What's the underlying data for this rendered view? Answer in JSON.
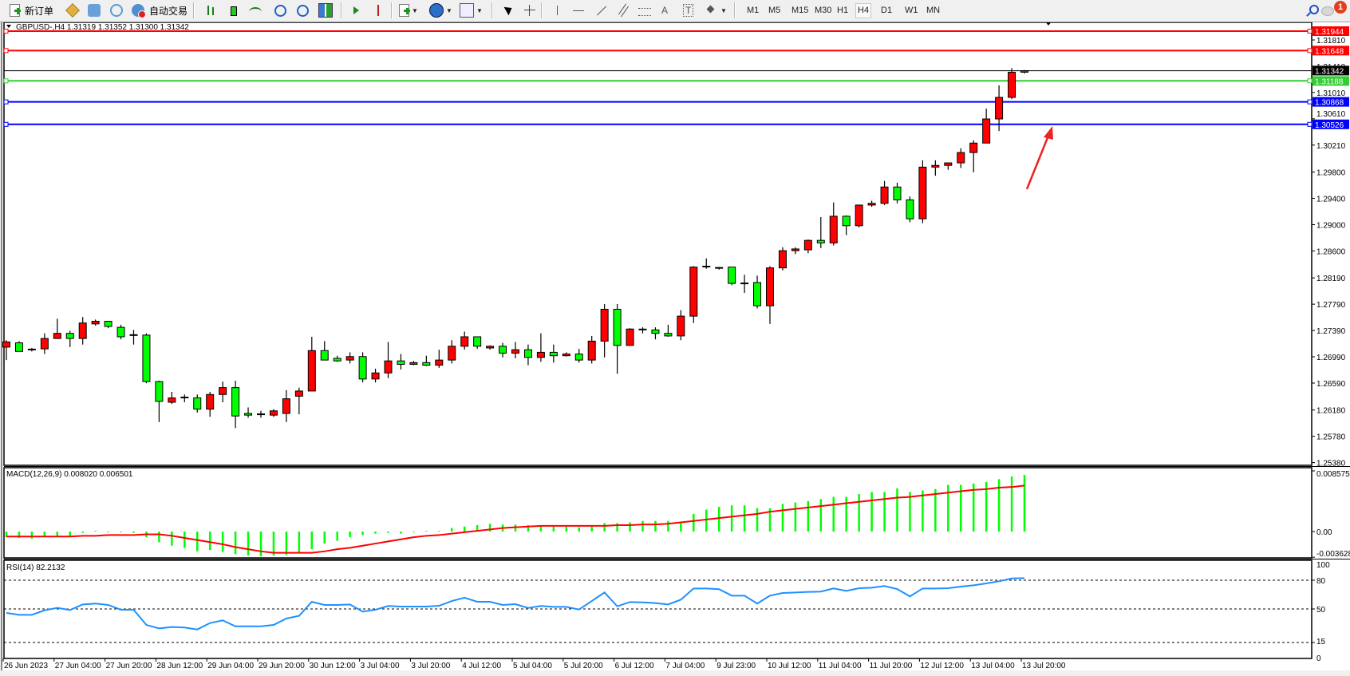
{
  "toolbar": {
    "new_order_label": "新订单",
    "auto_trading_label": "自动交易",
    "timeframes": [
      "M1",
      "M5",
      "M15",
      "M30",
      "H1",
      "H4",
      "D1",
      "W1",
      "MN"
    ],
    "active_timeframe": "H4",
    "notification_count": "1",
    "tool_text_label": "A",
    "tool_label_text": "T"
  },
  "chart": {
    "title": "GBPUSD-,H4  1.31319 1.31352 1.31300 1.31342",
    "macd_label": "MACD(12,26,9) 0.008020 0.006501",
    "rsi_label": "RSI(14) 82.2132"
  },
  "colors": {
    "bull": "#ff0000",
    "bear": "#00ff00",
    "macd_hist": "#00ff00",
    "macd_signal": "#ff0000",
    "rsi_line": "#1e90ff",
    "annotation_arrow": "#ee2222"
  },
  "chart_data": [
    {
      "type": "candlestick",
      "symbol": "GBPUSD-",
      "timeframe": "H4",
      "ylim": [
        1.25339,
        1.32053
      ],
      "price_ticks": [
        "1.31810",
        "1.31410",
        "1.31010",
        "1.30610",
        "1.30210",
        "1.29800",
        "1.29400",
        "1.29000",
        "1.28600",
        "1.28190",
        "1.27790",
        "1.27390",
        "1.26990",
        "1.26590",
        "1.26180",
        "1.25780",
        "1.25380"
      ],
      "time_labels": [
        "26 Jun 2023",
        "27 Jun 04:00",
        "27 Jun 20:00",
        "28 Jun 12:00",
        "29 Jun 04:00",
        "29 Jun 20:00",
        "30 Jun 12:00",
        "3 Jul 04:00",
        "3 Jul 20:00",
        "4 Jul 12:00",
        "5 Jul 04:00",
        "5 Jul 20:00",
        "6 Jul 12:00",
        "7 Jul 04:00",
        "9 Jul 23:00",
        "10 Jul 12:00",
        "11 Jul 04:00",
        "11 Jul 20:00",
        "12 Jul 12:00",
        "13 Jul 04:00",
        "13 Jul 20:00"
      ],
      "horizontal_lines": [
        {
          "price": 1.31944,
          "label": "1.31944",
          "color": "#ff0000"
        },
        {
          "price": 1.31648,
          "label": "1.31648",
          "color": "#ff0000"
        },
        {
          "price": 1.31188,
          "label": "1.31188",
          "color": "#32cd32"
        },
        {
          "price": 1.30868,
          "label": "1.30868",
          "color": "#0000ff"
        },
        {
          "price": 1.30526,
          "label": "1.30526",
          "color": "#0000ff"
        }
      ],
      "current_price": {
        "price": 1.31342,
        "label": "1.31342",
        "color": "#000000"
      },
      "ohlc": [
        [
          1.27137,
          1.27242,
          1.2694,
          1.27215
        ],
        [
          1.27202,
          1.27228,
          1.27071,
          1.27071
        ],
        [
          1.27097,
          1.27124,
          1.27071,
          1.271
        ],
        [
          1.2711,
          1.27346,
          1.27032,
          1.27268
        ],
        [
          1.27268,
          1.27569,
          1.27268,
          1.27346
        ],
        [
          1.27346,
          1.27386,
          1.27137,
          1.27268
        ],
        [
          1.27268,
          1.27595,
          1.27176,
          1.27504
        ],
        [
          1.2749,
          1.27556,
          1.27464,
          1.2753
        ],
        [
          1.2753,
          1.2753,
          1.27425,
          1.27451
        ],
        [
          1.27438,
          1.27477,
          1.27255,
          1.27294
        ],
        [
          1.2732,
          1.27399,
          1.27176,
          1.2731
        ],
        [
          1.2732,
          1.27346,
          1.26587,
          1.26613
        ],
        [
          1.26613,
          1.26626,
          1.25997,
          1.26311
        ],
        [
          1.26298,
          1.26456,
          1.26272,
          1.26364
        ],
        [
          1.26364,
          1.26416,
          1.26298,
          1.2637
        ],
        [
          1.26364,
          1.26416,
          1.26141,
          1.26193
        ],
        [
          1.26193,
          1.26456,
          1.26076,
          1.26416
        ],
        [
          1.26416,
          1.26613,
          1.26298,
          1.26521
        ],
        [
          1.26521,
          1.26626,
          1.25905,
          1.26089
        ],
        [
          1.26128,
          1.2622,
          1.26063,
          1.26102
        ],
        [
          1.26115,
          1.26167,
          1.26063,
          1.2611
        ],
        [
          1.26102,
          1.26193,
          1.26076,
          1.26167
        ],
        [
          1.26128,
          1.26482,
          1.25997,
          1.26351
        ],
        [
          1.2639,
          1.26521,
          1.26115,
          1.26469
        ],
        [
          1.26469,
          1.27294,
          1.26469,
          1.27084
        ],
        [
          1.27084,
          1.27228,
          1.2694,
          1.2694
        ],
        [
          1.26966,
          1.27006,
          1.26914,
          1.26927
        ],
        [
          1.2694,
          1.27058,
          1.26888,
          1.26993
        ],
        [
          1.26993,
          1.27058,
          1.266,
          1.26652
        ],
        [
          1.26652,
          1.26809,
          1.266,
          1.26744
        ],
        [
          1.26744,
          1.27215,
          1.26665,
          1.26927
        ],
        [
          1.26927,
          1.27032,
          1.26796,
          1.26875
        ],
        [
          1.26875,
          1.26927,
          1.26862,
          1.26901
        ],
        [
          1.26901,
          1.27006,
          1.26849,
          1.26862
        ],
        [
          1.26862,
          1.27097,
          1.26822,
          1.2694
        ],
        [
          1.2694,
          1.27242,
          1.26888,
          1.2715
        ],
        [
          1.2715,
          1.27373,
          1.27097,
          1.27294
        ],
        [
          1.27294,
          1.27294,
          1.2711,
          1.2715
        ],
        [
          1.27124,
          1.27163,
          1.27097,
          1.2715
        ],
        [
          1.2715,
          1.27202,
          1.2698,
          1.27045
        ],
        [
          1.27045,
          1.27215,
          1.26966,
          1.27097
        ],
        [
          1.27097,
          1.27176,
          1.26862,
          1.2698
        ],
        [
          1.2698,
          1.27346,
          1.26914,
          1.27058
        ],
        [
          1.27058,
          1.27176,
          1.26901,
          1.27006
        ],
        [
          1.27006,
          1.27058,
          1.26993,
          1.27032
        ],
        [
          1.27032,
          1.2711,
          1.26901,
          1.2694
        ],
        [
          1.2694,
          1.27307,
          1.26888,
          1.27228
        ],
        [
          1.27228,
          1.27792,
          1.2698,
          1.27713
        ],
        [
          1.27713,
          1.27792,
          1.26731,
          1.27163
        ],
        [
          1.27163,
          1.27425,
          1.27163,
          1.27412
        ],
        [
          1.27399,
          1.27438,
          1.27346,
          1.27405
        ],
        [
          1.27399,
          1.27438,
          1.27255,
          1.27346
        ],
        [
          1.27346,
          1.27477,
          1.27294,
          1.27307
        ],
        [
          1.27307,
          1.277,
          1.27242,
          1.27608
        ],
        [
          1.27608,
          1.28368,
          1.27504,
          1.28355
        ],
        [
          1.28362,
          1.28486,
          1.28329,
          1.28358
        ],
        [
          1.28342,
          1.28355,
          1.28316,
          1.28336
        ],
        [
          1.28355,
          1.28355,
          1.2808,
          1.28106
        ],
        [
          1.28106,
          1.28237,
          1.27962,
          1.281
        ],
        [
          1.28119,
          1.28224,
          1.27726,
          1.27766
        ],
        [
          1.27766,
          1.28368,
          1.2749,
          1.28342
        ],
        [
          1.28342,
          1.28656,
          1.28303,
          1.28604
        ],
        [
          1.28604,
          1.28656,
          1.28552,
          1.2863
        ],
        [
          1.28617,
          1.28774,
          1.28565,
          1.28761
        ],
        [
          1.28761,
          1.29115,
          1.28643,
          1.28722
        ],
        [
          1.28722,
          1.29338,
          1.28683,
          1.29128
        ],
        [
          1.29128,
          1.29141,
          1.2884,
          1.28984
        ],
        [
          1.28984,
          1.29298,
          1.28958,
          1.29298
        ],
        [
          1.29298,
          1.29364,
          1.29272,
          1.29324
        ],
        [
          1.29324,
          1.29665,
          1.29298,
          1.29573
        ],
        [
          1.29573,
          1.29639,
          1.29324,
          1.29377
        ],
        [
          1.29377,
          1.29429,
          1.29036,
          1.29089
        ],
        [
          1.29089,
          1.29979,
          1.29023,
          1.29875
        ],
        [
          1.29875,
          1.29979,
          1.29744,
          1.29901
        ],
        [
          1.29901,
          1.2994,
          1.29835,
          1.2994
        ],
        [
          1.2994,
          1.30163,
          1.29862,
          1.30097
        ],
        [
          1.30097,
          1.30281,
          1.29796,
          1.30241
        ],
        [
          1.30241,
          1.30765,
          1.30241,
          1.30608
        ],
        [
          1.30608,
          1.31119,
          1.30425,
          1.30936
        ],
        [
          1.30936,
          1.31381,
          1.3091,
          1.31319
        ],
        [
          1.31319,
          1.31352,
          1.313,
          1.31342
        ]
      ]
    },
    {
      "type": "bar",
      "indicator": "MACD(12,26,9)",
      "ylim": [
        -0.003628,
        0.008575
      ],
      "tick_labels": [
        "0.008575",
        "0.00",
        "-0.003628"
      ],
      "series": [
        {
          "name": "MACD",
          "style": "histogram",
          "values": [
            -0.0008,
            -0.0009,
            -0.001,
            -0.0008,
            -0.0007,
            -0.0007,
            -0.0002,
            0.0001,
            -0.0001,
            -0.0001,
            -0.0002,
            -0.0008,
            -0.0015,
            -0.002,
            -0.0023,
            -0.0028,
            -0.0026,
            -0.0029,
            -0.0032,
            -0.0034,
            -0.0035,
            -0.0034,
            -0.0033,
            -0.003,
            -0.0025,
            -0.0017,
            -0.0013,
            -0.0008,
            -0.0005,
            -0.0003,
            -0.0002,
            -0.0003,
            -0.0001,
            0.0001,
            0.0001,
            0.0005,
            0.0007,
            0.0009,
            0.0011,
            0.001,
            0.001,
            0.0009,
            0.0008,
            0.0007,
            0.0007,
            0.0006,
            0.0007,
            0.0012,
            0.0012,
            0.0013,
            0.0015,
            0.0015,
            0.0015,
            0.0013,
            0.0025,
            0.0031,
            0.0035,
            0.0037,
            0.0037,
            0.0033,
            0.0033,
            0.0039,
            0.0041,
            0.0043,
            0.0046,
            0.0049,
            0.0049,
            0.0053,
            0.0056,
            0.0056,
            0.0061,
            0.0056,
            0.0058,
            0.006,
            0.0066,
            0.0066,
            0.0068,
            0.007,
            0.0074,
            0.0078,
            0.008
          ]
        },
        {
          "name": "Signal",
          "style": "line",
          "values": [
            -0.0007,
            -0.0007,
            -0.0007,
            -0.0007,
            -0.0007,
            -0.0007,
            -0.0006,
            -0.0006,
            -0.0005,
            -0.0005,
            -0.0005,
            -0.0004,
            -0.0004,
            -0.0006,
            -0.0009,
            -0.0012,
            -0.0015,
            -0.0018,
            -0.0022,
            -0.0025,
            -0.0028,
            -0.003,
            -0.003,
            -0.003,
            -0.003,
            -0.0028,
            -0.0025,
            -0.0023,
            -0.002,
            -0.0017,
            -0.0014,
            -0.0011,
            -0.0008,
            -0.0006,
            -0.0005,
            -0.0003,
            -0.0001,
            0.0001,
            0.0003,
            0.0005,
            0.0006,
            0.0007,
            0.0008,
            0.0008,
            0.0008,
            0.0008,
            0.0008,
            0.0008,
            0.0009,
            0.0009,
            0.001,
            0.001,
            0.0011,
            0.0013,
            0.0015,
            0.0017,
            0.0019,
            0.0021,
            0.0023,
            0.0025,
            0.0028,
            0.003,
            0.0032,
            0.0034,
            0.0036,
            0.0038,
            0.004,
            0.0042,
            0.0044,
            0.0046,
            0.0048,
            0.0049,
            0.0051,
            0.0053,
            0.0055,
            0.0057,
            0.0059,
            0.006,
            0.0062,
            0.0063,
            0.0065
          ]
        }
      ]
    },
    {
      "type": "line",
      "indicator": "RSI(14)",
      "ylim": [
        0,
        100
      ],
      "levels": [
        80,
        50,
        15
      ],
      "tick_labels": [
        "100",
        "80",
        "50",
        "15",
        "0"
      ],
      "values": [
        45.8,
        43.9,
        43.9,
        48.6,
        51.1,
        48.9,
        54.7,
        55.6,
        54.2,
        49.2,
        49.2,
        33.3,
        29.7,
        31.1,
        30.6,
        28.6,
        35.3,
        38.1,
        31.9,
        31.9,
        31.9,
        33.3,
        40.0,
        42.8,
        57.5,
        54.2,
        54.2,
        54.7,
        47.2,
        49.2,
        53.1,
        52.5,
        52.5,
        52.5,
        53.3,
        58.3,
        61.7,
        57.5,
        57.5,
        54.2,
        55.0,
        51.1,
        53.1,
        52.2,
        52.2,
        49.4,
        58.3,
        67.2,
        52.8,
        57.2,
        56.9,
        56.1,
        54.7,
        59.7,
        71.4,
        71.4,
        70.6,
        63.9,
        63.9,
        55.6,
        63.9,
        66.7,
        67.2,
        67.8,
        68.1,
        71.4,
        68.9,
        71.7,
        72.2,
        73.9,
        70.8,
        63.1,
        71.4,
        71.4,
        71.7,
        73.3,
        74.7,
        76.7,
        78.9,
        81.9,
        82.2132
      ]
    }
  ]
}
